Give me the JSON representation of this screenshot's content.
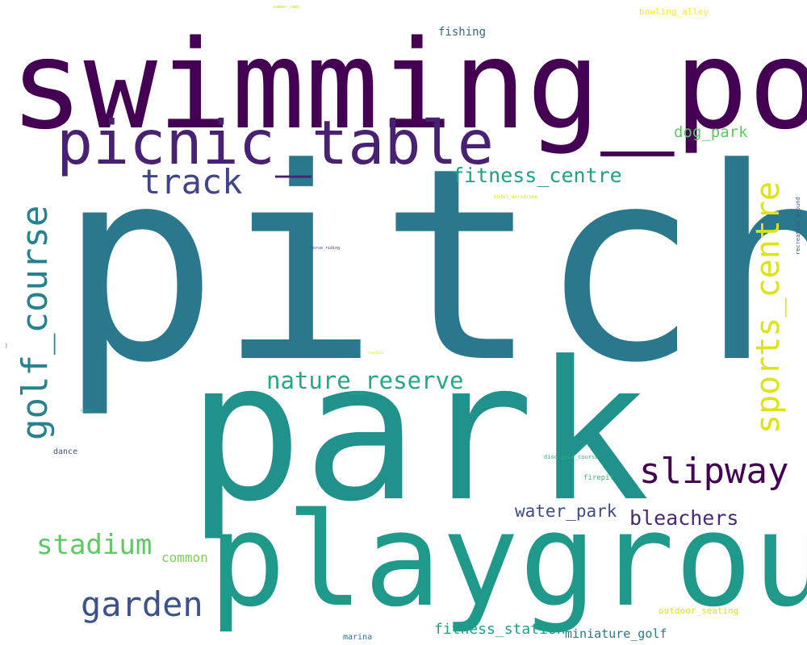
{
  "words": [
    {
      "key": "pitch",
      "text": "pitch",
      "color": "#2a788e"
    },
    {
      "key": "swimming_pool",
      "text": "swimming_pool",
      "color": "#440154"
    },
    {
      "key": "park",
      "text": "park",
      "color": "#21918c"
    },
    {
      "key": "playground",
      "text": "playground",
      "color": "#1f9a8a"
    },
    {
      "key": "picnic_table",
      "text": "picnic_table",
      "color": "#482173"
    },
    {
      "key": "golf_course",
      "text": "golf_course",
      "color": "#26828e"
    },
    {
      "key": "sports_centre",
      "text": "sports_centre",
      "color": "#dde318"
    },
    {
      "key": "track",
      "text": "track",
      "color": "#414487"
    },
    {
      "key": "slipway",
      "text": "slipway",
      "color": "#440154"
    },
    {
      "key": "garden",
      "text": "garden",
      "color": "#3b528b"
    },
    {
      "key": "nature_reserve",
      "text": "nature_reserve",
      "color": "#22a884"
    },
    {
      "key": "stadium",
      "text": "stadium",
      "color": "#5ec962"
    },
    {
      "key": "fitness_centre",
      "text": "fitness_centre",
      "color": "#1fa187"
    },
    {
      "key": "bleachers",
      "text": "bleachers",
      "color": "#482878"
    },
    {
      "key": "water_park",
      "text": "water_park",
      "color": "#3e4a89"
    },
    {
      "key": "dog_park",
      "text": "dog_park",
      "color": "#5ec962"
    },
    {
      "key": "fitness_station",
      "text": "fitness_station",
      "color": "#1f9e89"
    },
    {
      "key": "miniature_golf",
      "text": "miniature_golf",
      "color": "#2a788e"
    },
    {
      "key": "common",
      "text": "common",
      "color": "#7ad151"
    },
    {
      "key": "fishing",
      "text": "fishing",
      "color": "#31688e"
    },
    {
      "key": "bowling_alley",
      "text": "bowling_alley",
      "color": "#fde725"
    },
    {
      "key": "outdoor_seating",
      "text": "outdoor_seating",
      "color": "#d8e219"
    },
    {
      "key": "marina",
      "text": "marina",
      "color": "#2c728e"
    },
    {
      "key": "dance",
      "text": "dance",
      "color": "#3b528b"
    },
    {
      "key": "firepit",
      "text": "firepit",
      "color": "#35b779"
    },
    {
      "key": "disc_golf_course",
      "text": "disc_golf_course",
      "color": "#2ab07f"
    },
    {
      "key": "recreation_ground",
      "text": "recreation_ground",
      "color": "#38598c"
    },
    {
      "key": "model_aerodrome",
      "text": "model_aerodrome",
      "color": "#d8e219"
    },
    {
      "key": "horse_riding",
      "text": "horse_riding",
      "color": "#46337e"
    },
    {
      "key": "summer_camp",
      "text": "summer_camp",
      "color": "#c8e020"
    },
    {
      "key": "fountain",
      "text": "fountain",
      "color": "#dde318"
    },
    {
      "key": "picnic",
      "text": "picnic",
      "color": "#29af7f"
    },
    {
      "key": "tiny_left",
      "text": "]",
      "color": "#38598c"
    }
  ]
}
